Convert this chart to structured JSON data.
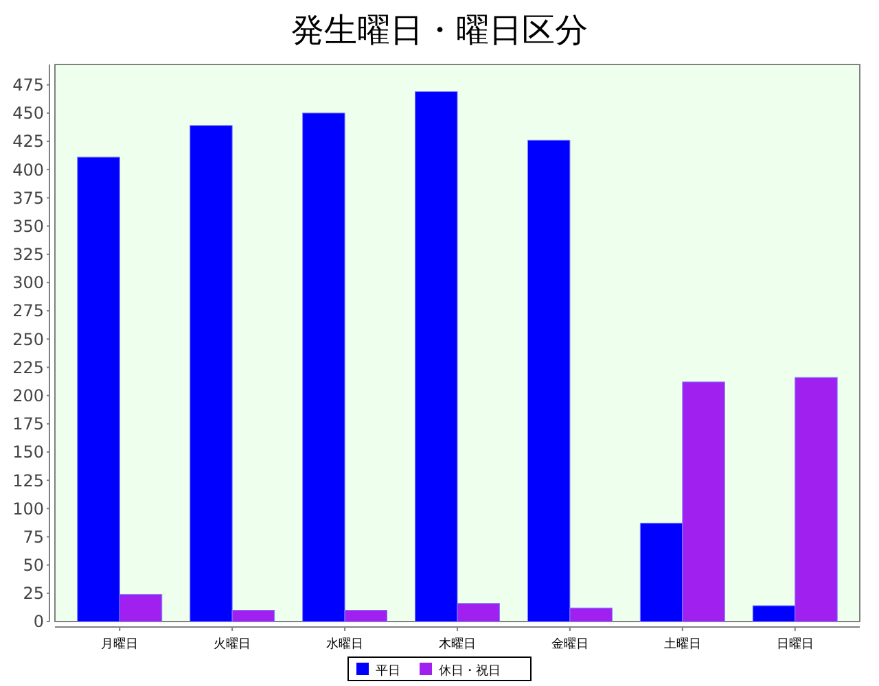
{
  "chart_data": {
    "type": "bar",
    "title": "発生曜日・曜日区分",
    "categories": [
      "月曜日",
      "火曜日",
      "水曜日",
      "木曜日",
      "金曜日",
      "土曜日",
      "日曜日"
    ],
    "series": [
      {
        "name": "平日",
        "color": "#0000ff",
        "values": [
          411,
          439,
          450,
          469,
          426,
          87,
          14
        ]
      },
      {
        "name": "休日・祝日",
        "color": "#a020f0",
        "values": [
          24,
          10,
          10,
          16,
          12,
          212,
          216
        ]
      }
    ],
    "ylim": [
      0,
      493
    ],
    "yticks": [
      0,
      25,
      50,
      75,
      100,
      125,
      150,
      175,
      200,
      225,
      250,
      275,
      300,
      325,
      350,
      375,
      400,
      425,
      450,
      475
    ],
    "grid": false,
    "legend": "bottom"
  }
}
